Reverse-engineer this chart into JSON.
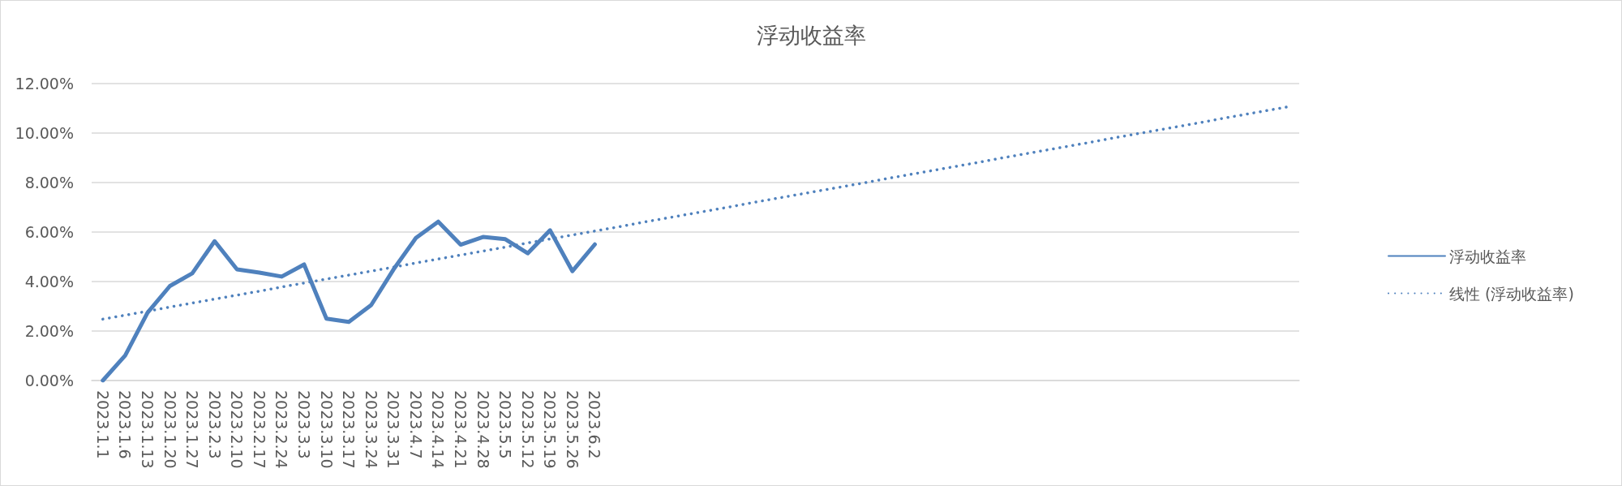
{
  "chart_data": {
    "type": "line",
    "title": "浮动收益率",
    "categories": [
      "2023.1.1",
      "2023.1.6",
      "2023.1.13",
      "2023.1.20",
      "2023.1.27",
      "2023.2.3",
      "2023.2.10",
      "2023.2.17",
      "2023.2.24",
      "2023.3.3",
      "2023.3.10",
      "2023.3.17",
      "2023.3.24",
      "2023.3.31",
      "2023.4.7",
      "2023.4.14",
      "2023.4.21",
      "2023.4.28",
      "2023.5.5",
      "2023.5.12",
      "2023.5.19",
      "2023.5.26",
      "2023.6.2",
      null,
      null,
      null,
      null,
      null,
      null,
      null,
      null,
      null,
      null,
      null,
      null,
      null,
      null,
      null,
      null,
      null,
      null,
      null,
      null,
      null,
      null,
      null,
      null,
      null,
      null,
      null,
      null,
      null,
      null,
      null
    ],
    "series": [
      {
        "name": "浮动收益率",
        "color": "#4f81bd",
        "line_style": "solid",
        "values": [
          0,
          1.01,
          2.74,
          3.82,
          4.33,
          5.63,
          4.49,
          4.36,
          4.2,
          4.69,
          2.5,
          2.37,
          3.05,
          4.49,
          5.76,
          6.42,
          5.49,
          5.8,
          5.71,
          5.14,
          6.07,
          4.42,
          5.5,
          null,
          null,
          null,
          null,
          null,
          null,
          null,
          null,
          null,
          null,
          null,
          null,
          null,
          null,
          null,
          null,
          null,
          null,
          null,
          null,
          null,
          null,
          null,
          null,
          null,
          null,
          null,
          null,
          null,
          null,
          null
        ]
      },
      {
        "name": "线性 (浮动收益率)",
        "type": "line",
        "color": "#4f81bd",
        "line_style": "dotted",
        "values": [
          2.48,
          2.64,
          2.8,
          2.97,
          3.13,
          3.29,
          3.45,
          3.61,
          3.78,
          3.94,
          4.1,
          4.26,
          4.42,
          4.58,
          4.75,
          4.91,
          5.07,
          5.23,
          5.39,
          5.56,
          5.72,
          5.88,
          6.04,
          6.2,
          6.37,
          6.53,
          6.69,
          6.85,
          7.01,
          7.18,
          7.34,
          7.5,
          7.66,
          7.82,
          7.98,
          8.15,
          8.31,
          8.47,
          8.63,
          8.79,
          8.96,
          9.12,
          9.28,
          9.44,
          9.6,
          9.77,
          9.93,
          10.09,
          10.25,
          10.41,
          10.58,
          10.74,
          10.9,
          11.06
        ]
      }
    ],
    "ylim": [
      0,
      12
    ],
    "yticks": [
      {
        "value": 0,
        "label": "0.00%"
      },
      {
        "value": 2,
        "label": "2.00%"
      },
      {
        "value": 4,
        "label": "4.00%"
      },
      {
        "value": 6,
        "label": "6.00%"
      },
      {
        "value": 8,
        "label": "8.00%"
      },
      {
        "value": 10,
        "label": "10.00%"
      },
      {
        "value": 12,
        "label": "12.00%"
      }
    ],
    "grid": "y",
    "legend": "right",
    "marker": "none"
  }
}
